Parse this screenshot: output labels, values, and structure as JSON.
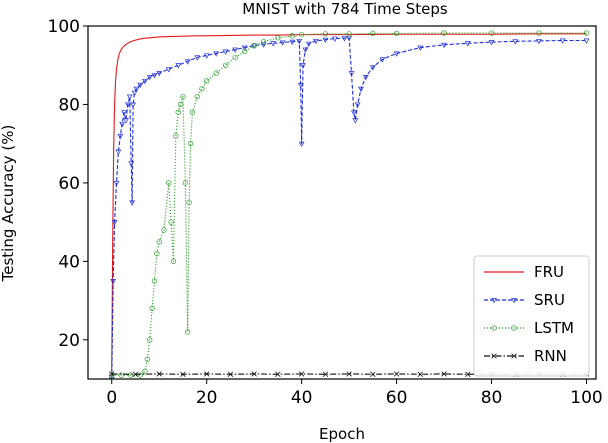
{
  "chart_data": {
    "type": "line",
    "title": "MNIST with 784 Time Steps",
    "xlabel": "Epoch",
    "ylabel": "Testing Accuracy (%)",
    "xlim": [
      -5,
      102
    ],
    "ylim": [
      10,
      100
    ],
    "xticks": [
      0,
      20,
      40,
      60,
      80,
      100
    ],
    "yticks": [
      20,
      40,
      60,
      80,
      100
    ],
    "grid": false,
    "legend_position": "bottom-right",
    "series": [
      {
        "name": "FRU",
        "color": "#e31a1c",
        "style": "solid",
        "marker": "none",
        "x": [
          0,
          0.2,
          0.4,
          0.6,
          0.8,
          1,
          1.3,
          1.6,
          2,
          2.5,
          3,
          3.5,
          4,
          5,
          6,
          7,
          8,
          10,
          12,
          15,
          18,
          20,
          25,
          30,
          35,
          40,
          45,
          50,
          60,
          70,
          80,
          90,
          100
        ],
        "y": [
          12,
          45,
          68,
          80,
          86,
          89,
          91.5,
          93,
          94,
          94.8,
          95.3,
          95.7,
          96,
          96.4,
          96.7,
          96.9,
          97,
          97.2,
          97.3,
          97.4,
          97.5,
          97.5,
          97.6,
          97.7,
          97.7,
          97.8,
          97.8,
          97.8,
          97.9,
          97.9,
          97.9,
          98,
          98
        ]
      },
      {
        "name": "SRU",
        "color": "#1f2fd8",
        "style": "dashed",
        "marker": "tri",
        "x": [
          0,
          0.3,
          0.6,
          1,
          1.4,
          1.8,
          2.2,
          2.6,
          3,
          3.4,
          3.8,
          4.1,
          4.3,
          4.5,
          4.8,
          5.2,
          6,
          7,
          8,
          9,
          10,
          12,
          14,
          16,
          18,
          20,
          22,
          24,
          26,
          28,
          30,
          32,
          34,
          36,
          38,
          39.5,
          39.8,
          40,
          40.3,
          40.8,
          41.5,
          43,
          45,
          47,
          49,
          50,
          50.5,
          51,
          51.3,
          51.8,
          52.5,
          53.5,
          55,
          57,
          60,
          65,
          70,
          75,
          80,
          85,
          90,
          95,
          100
        ],
        "y": [
          10,
          35,
          50,
          60,
          68,
          72,
          75,
          78,
          76,
          80,
          82,
          65,
          55,
          80,
          83,
          84,
          85,
          86,
          87,
          87.5,
          88,
          89,
          90,
          91,
          92,
          92.5,
          93,
          93.5,
          94,
          94.5,
          95,
          95.3,
          95.6,
          95.8,
          96,
          96.2,
          85,
          70,
          90,
          94,
          95.5,
          96.2,
          96.5,
          96.8,
          96.9,
          97,
          88,
          78,
          76,
          80,
          84,
          87,
          89.5,
          91.5,
          93,
          94.5,
          95.2,
          95.6,
          95.9,
          96.1,
          96.2,
          96.3,
          96.3
        ]
      },
      {
        "name": "LSTM",
        "color": "#2ca02c",
        "style": "dotted",
        "marker": "circle",
        "x": [
          0,
          2,
          4,
          6,
          7,
          7.5,
          8,
          8.5,
          9,
          9.5,
          10,
          11,
          12,
          12.5,
          13,
          13.5,
          14,
          14.5,
          15,
          15.5,
          16,
          16.3,
          16.6,
          17,
          18,
          19,
          20,
          22,
          24,
          26,
          28,
          30,
          32,
          35,
          38,
          40,
          45,
          50,
          55,
          60,
          70,
          80,
          90,
          100
        ],
        "y": [
          11,
          11,
          11,
          11,
          12,
          15,
          20,
          28,
          35,
          42,
          45,
          48,
          60,
          50,
          40,
          72,
          78,
          80,
          82,
          60,
          22,
          55,
          70,
          78,
          82,
          84,
          86,
          88,
          90,
          92,
          93.5,
          95,
          96,
          97,
          97.5,
          97.8,
          98,
          98,
          98.1,
          98.1,
          98.2,
          98.2,
          98.2,
          98.2
        ]
      },
      {
        "name": "RNN",
        "color": "#111111",
        "style": "dashdot",
        "marker": "x",
        "x": [
          0,
          5,
          10,
          15,
          20,
          25,
          30,
          35,
          40,
          45,
          50,
          55,
          60,
          65,
          70,
          75,
          80,
          85,
          90,
          95,
          100
        ],
        "y": [
          11.3,
          11.2,
          11.3,
          11.2,
          11.3,
          11.2,
          11.3,
          11.2,
          11.3,
          11.2,
          11.3,
          11.2,
          11.3,
          11.2,
          11.3,
          11.2,
          11.3,
          11.2,
          11.3,
          11.2,
          11.3
        ]
      }
    ]
  }
}
